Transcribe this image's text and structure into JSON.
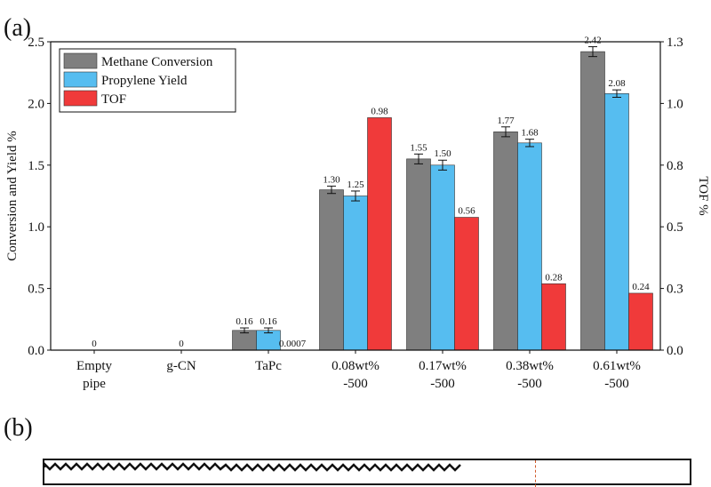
{
  "panel_labels": {
    "a": "(a)",
    "b": "(b)"
  },
  "chart_data": {
    "type": "bar",
    "categories": [
      [
        "Empty",
        "pipe"
      ],
      [
        "g-CN"
      ],
      [
        "TaPc"
      ],
      [
        "0.08wt%",
        "-500"
      ],
      [
        "0.17wt%",
        "-500"
      ],
      [
        "0.38wt%",
        "-500"
      ],
      [
        "0.61wt%",
        "-500"
      ]
    ],
    "series": [
      {
        "name": "Methane Conversion",
        "axis": "left",
        "color": "#7f7f7f",
        "values": [
          0,
          0,
          0.16,
          1.3,
          1.55,
          1.77,
          2.42
        ],
        "labels": [
          "0",
          "0",
          "0.16",
          "1.30",
          "1.55",
          "1.77",
          "2.42"
        ],
        "errors": [
          null,
          null,
          0.02,
          0.03,
          0.04,
          0.04,
          0.04
        ]
      },
      {
        "name": "Propylene Yield",
        "axis": "left",
        "color": "#56bdf0",
        "values": [
          0,
          0,
          0.16,
          1.25,
          1.5,
          1.68,
          2.08
        ],
        "labels": [
          "",
          "",
          "0.16",
          "1.25",
          "1.50",
          "1.68",
          "2.08"
        ],
        "errors": [
          null,
          null,
          0.02,
          0.04,
          0.04,
          0.03,
          0.03
        ]
      },
      {
        "name": "TOF",
        "axis": "right",
        "color": "#f03a3a",
        "values": [
          0,
          0,
          0.0007,
          0.98,
          0.56,
          0.28,
          0.24
        ],
        "labels": [
          "",
          "",
          "0.0007",
          "0.98",
          "0.56",
          "0.28",
          "0.24"
        ],
        "errors": [
          null,
          null,
          null,
          null,
          null,
          null,
          null
        ]
      }
    ],
    "ylabel_left": "Conversion and Yield %",
    "ylabel_right": "TOF %",
    "ylim_left": [
      0,
      2.5
    ],
    "ylim_right": [
      0,
      1.3
    ],
    "yticks_left": [
      "0.0",
      "0.5",
      "1.0",
      "1.5",
      "2.0",
      "2.5"
    ],
    "yticks_left_values": [
      0,
      0.5,
      1.0,
      1.5,
      2.0,
      2.5
    ],
    "yticks_right": [
      "0.0",
      "0.3",
      "0.5",
      "0.8",
      "1.0",
      "1.3"
    ],
    "yticks_right_values": [
      0,
      0.26,
      0.52,
      0.78,
      1.04,
      1.3
    ],
    "legend_position": "top-left",
    "grid": false
  }
}
